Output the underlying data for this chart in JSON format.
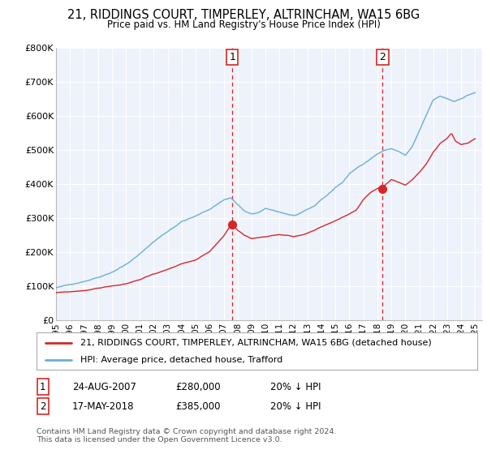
{
  "title": "21, RIDDINGS COURT, TIMPERLEY, ALTRINCHAM, WA15 6BG",
  "subtitle": "Price paid vs. HM Land Registry's House Price Index (HPI)",
  "legend_line1": "21, RIDDINGS COURT, TIMPERLEY, ALTRINCHAM, WA15 6BG (detached house)",
  "legend_line2": "HPI: Average price, detached house, Trafford",
  "footnote": "Contains HM Land Registry data © Crown copyright and database right 2024.\nThis data is licensed under the Open Government Licence v3.0.",
  "sale1_label": "1",
  "sale1_date": "24-AUG-2007",
  "sale1_price": "£280,000",
  "sale1_hpi": "20% ↓ HPI",
  "sale2_label": "2",
  "sale2_date": "17-MAY-2018",
  "sale2_price": "£385,000",
  "sale2_hpi": "20% ↓ HPI",
  "hpi_color": "#6baed6",
  "price_color": "#d62728",
  "vline_color": "#d62728",
  "plot_bg_color": "#eef2fb",
  "ylim": [
    0,
    800000
  ],
  "yticks": [
    0,
    100000,
    200000,
    300000,
    400000,
    500000,
    600000,
    700000,
    800000
  ],
  "ytick_labels": [
    "£0",
    "£100K",
    "£200K",
    "£300K",
    "£400K",
    "£500K",
    "£600K",
    "£700K",
    "£800K"
  ],
  "sale1_x": 2007.63,
  "sale1_y": 280000,
  "sale2_x": 2018.38,
  "sale2_y": 385000,
  "xmin": 1995.0,
  "xmax": 2025.5
}
